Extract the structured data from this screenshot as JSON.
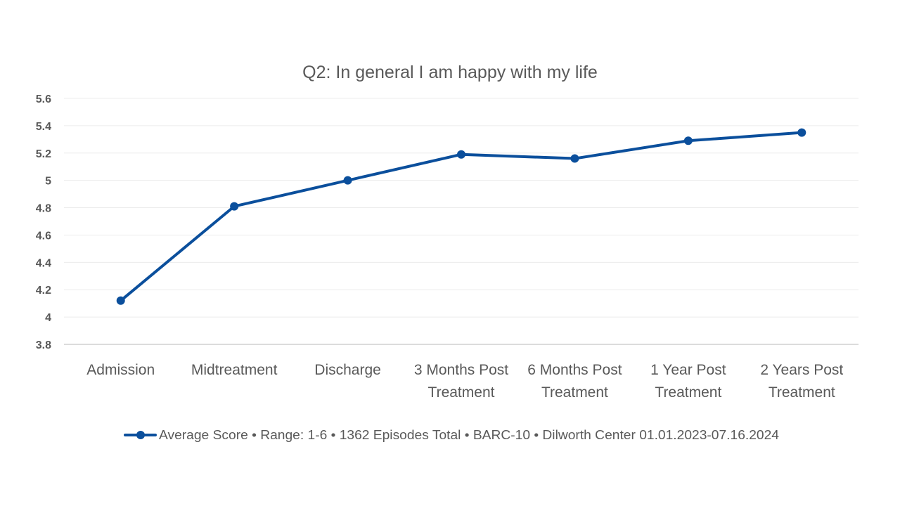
{
  "chart_data": {
    "type": "line",
    "title": "Q2: In general I am happy with my life",
    "categories": [
      [
        "Admission"
      ],
      [
        "Midtreatment"
      ],
      [
        "Discharge"
      ],
      [
        "3 Months Post",
        "Treatment"
      ],
      [
        "6 Months Post",
        "Treatment"
      ],
      [
        "1 Year Post",
        "Treatment"
      ],
      [
        "2 Years Post",
        "Treatment"
      ]
    ],
    "series": [
      {
        "name": "Average Score • Range: 1-6 • 1362 Episodes Total • BARC-10 • Dilworth Center 01.01.2023-07.16.2024",
        "values": [
          4.12,
          4.81,
          5.0,
          5.19,
          5.16,
          5.29,
          5.35
        ],
        "color": "#0b4f9c"
      }
    ],
    "y_ticks": [
      "3.8",
      "4",
      "4.2",
      "4.4",
      "4.6",
      "4.8",
      "5",
      "5.2",
      "5.4",
      "5.6"
    ],
    "ylim": [
      3.8,
      5.6
    ],
    "grid": true,
    "legend_position": "bottom",
    "xlabel": "",
    "ylabel": ""
  }
}
